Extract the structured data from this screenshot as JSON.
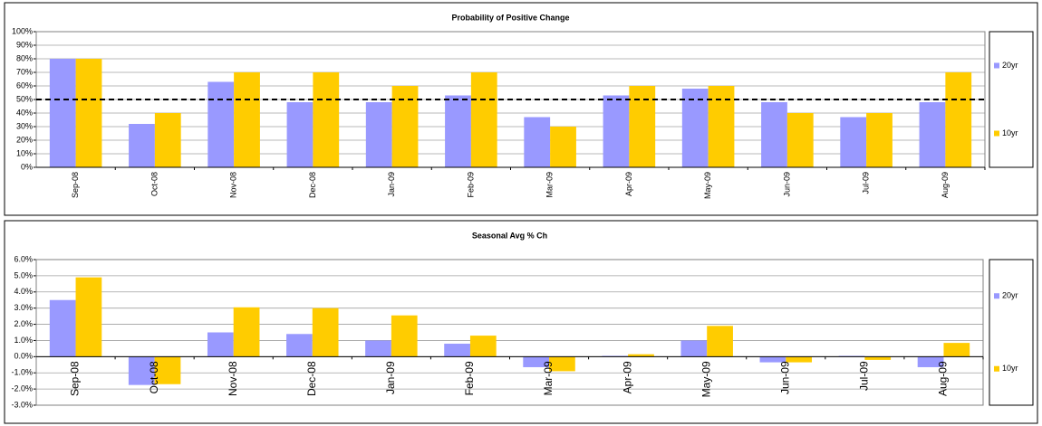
{
  "chart_data": [
    {
      "type": "bar",
      "title": "Probability of Positive Change",
      "categories": [
        "Sep-08",
        "Oct-08",
        "Nov-08",
        "Dec-08",
        "Jan-09",
        "Feb-09",
        "Mar-09",
        "Apr-09",
        "May-09",
        "Jun-09",
        "Jul-09",
        "Aug-09"
      ],
      "series": [
        {
          "name": "20yr",
          "color": "#9999ff",
          "values": [
            80,
            32,
            63,
            48,
            48,
            53,
            37,
            53,
            58,
            48,
            37,
            48
          ]
        },
        {
          "name": "10yr",
          "color": "#ffcc00",
          "values": [
            80,
            40,
            70,
            70,
            60,
            70,
            30,
            60,
            60,
            40,
            40,
            70
          ]
        }
      ],
      "reference_line": 50,
      "ylim": [
        0,
        100
      ],
      "yticks": [
        {
          "value": 0,
          "label": "0%"
        },
        {
          "value": 10,
          "label": "10%"
        },
        {
          "value": 20,
          "label": "20%"
        },
        {
          "value": 30,
          "label": "30%"
        },
        {
          "value": 40,
          "label": "40%"
        },
        {
          "value": 50,
          "label": "50%"
        },
        {
          "value": 60,
          "label": "60%"
        },
        {
          "value": 70,
          "label": "70%"
        },
        {
          "value": 80,
          "label": "80%"
        },
        {
          "value": 90,
          "label": "90%"
        },
        {
          "value": 100,
          "label": "100%"
        }
      ],
      "grid": true,
      "legend": "right"
    },
    {
      "type": "bar",
      "title": "Seasonal Avg % Ch",
      "categories": [
        "Sep-08",
        "Oct-08",
        "Nov-08",
        "Dec-08",
        "Jan-09",
        "Feb-09",
        "Mar-09",
        "Apr-09",
        "May-09",
        "Jun-09",
        "Jul-09",
        "Aug-09"
      ],
      "series": [
        {
          "name": "20yr",
          "color": "#9999ff",
          "values": [
            3.5,
            -1.75,
            1.5,
            1.4,
            1.0,
            0.8,
            -0.65,
            0.05,
            1.0,
            -0.35,
            0.05,
            -0.65
          ]
        },
        {
          "name": "10yr",
          "color": "#ffcc00",
          "values": [
            4.9,
            -1.7,
            3.05,
            3.0,
            2.55,
            1.3,
            -0.9,
            0.15,
            1.9,
            -0.35,
            -0.2,
            0.85
          ]
        }
      ],
      "ylim": [
        -3,
        6
      ],
      "yticks": [
        {
          "value": -3,
          "label": "-3.0%"
        },
        {
          "value": -2,
          "label": "-2.0%"
        },
        {
          "value": -1,
          "label": "-1.0%"
        },
        {
          "value": 0,
          "label": "0.0%"
        },
        {
          "value": 1,
          "label": "1.0%"
        },
        {
          "value": 2,
          "label": "2.0%"
        },
        {
          "value": 3,
          "label": "3.0%"
        },
        {
          "value": 4,
          "label": "4.0%"
        },
        {
          "value": 5,
          "label": "5.0%"
        },
        {
          "value": 6,
          "label": "6.0%"
        }
      ],
      "grid": true,
      "legend": "right"
    }
  ]
}
